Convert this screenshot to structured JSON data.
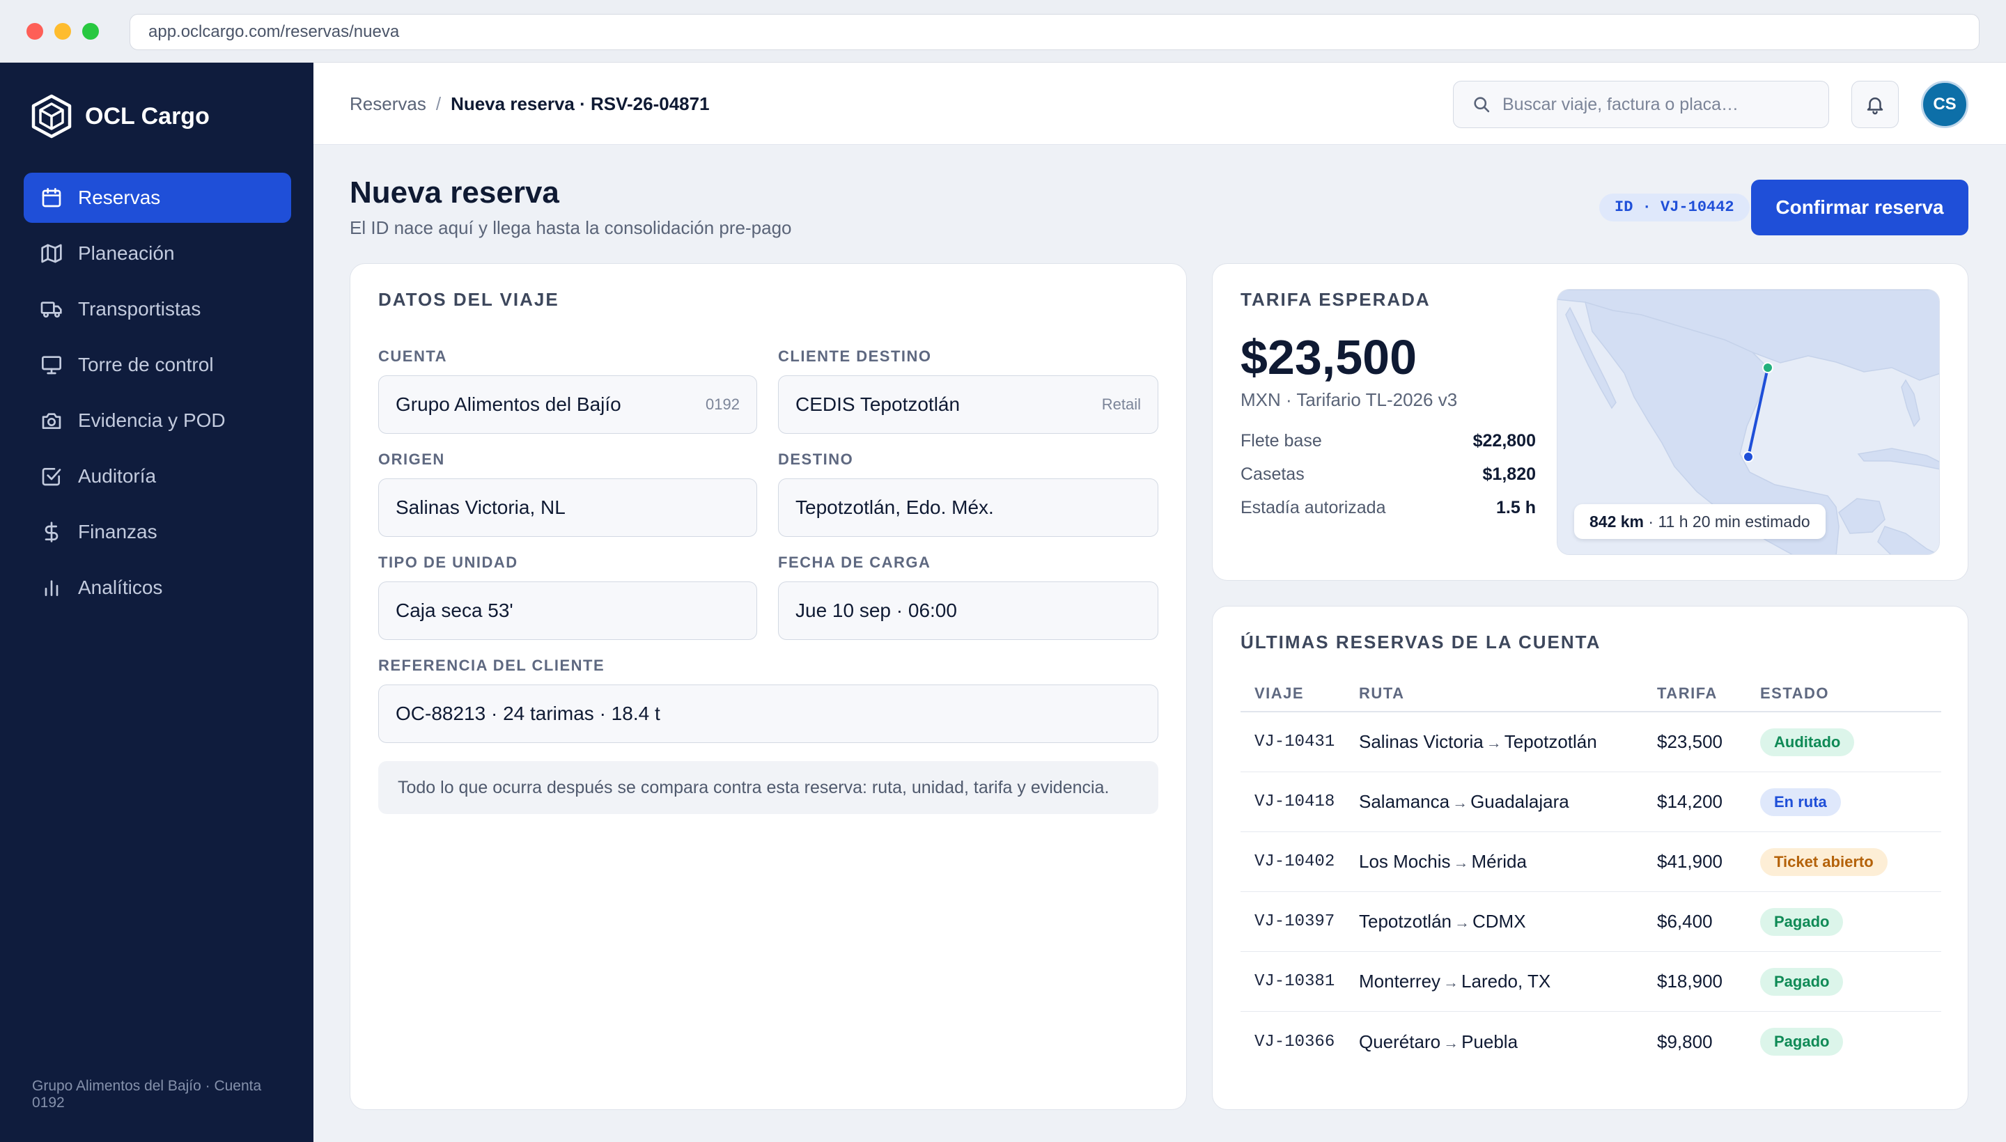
{
  "browser": {
    "url": "app.oclcargo.com/reservas/nueva"
  },
  "brand": {
    "name": "OCL Cargo"
  },
  "sidebar": {
    "items": [
      {
        "label": "Reservas",
        "icon": "calendar-icon",
        "active": true
      },
      {
        "label": "Planeación",
        "icon": "map-icon",
        "active": false
      },
      {
        "label": "Transportistas",
        "icon": "truck-icon",
        "active": false
      },
      {
        "label": "Torre de control",
        "icon": "monitor-icon",
        "active": false
      },
      {
        "label": "Evidencia y POD",
        "icon": "camera-icon",
        "active": false
      },
      {
        "label": "Auditoría",
        "icon": "check-square-icon",
        "active": false
      },
      {
        "label": "Finanzas",
        "icon": "dollar-icon",
        "active": false
      },
      {
        "label": "Analíticos",
        "icon": "bar-chart-icon",
        "active": false
      }
    ],
    "footer": "Grupo Alimentos del Bajío · Cuenta 0192"
  },
  "topbar": {
    "breadcrumb_root": "Reservas",
    "breadcrumb_sep": "/",
    "breadcrumb_current": "Nueva reserva · RSV-26-04871",
    "search_placeholder": "Buscar viaje, factura o placa…",
    "avatar_initials": "CS"
  },
  "header": {
    "title": "Nueva reserva",
    "subtitle": "El ID nace aquí y llega hasta la consolidación pre-pago",
    "id_badge": "ID · VJ-10442",
    "confirm_label": "Confirmar reserva"
  },
  "trip": {
    "title": "DATOS DEL VIAJE",
    "cuenta_label": "CUENTA",
    "cuenta_value": "Grupo Alimentos del Bajío",
    "cuenta_tag": "0192",
    "cliente_label": "CLIENTE DESTINO",
    "cliente_value": "CEDIS Tepotzotlán",
    "cliente_tag": "Retail",
    "origen_label": "ORIGEN",
    "origen_value": "Salinas Victoria, NL",
    "destino_label": "DESTINO",
    "destino_value": "Tepotzotlán, Edo. Méx.",
    "unidad_label": "TIPO DE UNIDAD",
    "unidad_value": "Caja seca 53'",
    "fecha_label": "FECHA DE CARGA",
    "fecha_value": "Jue 10 sep · 06:00",
    "referencia_label": "REFERENCIA DEL CLIENTE",
    "referencia_value": "OC-88213 · 24 tarimas · 18.4 t",
    "note": "Todo lo que ocurra después se compara contra esta reserva: ruta, unidad, tarifa y evidencia."
  },
  "tariff": {
    "title": "TARIFA ESPERADA",
    "amount": "$23,500",
    "sub": "MXN · Tarifario TL-2026 v3",
    "rows": [
      {
        "label": "Flete base",
        "value": "$22,800"
      },
      {
        "label": "Casetas",
        "value": "$1,820"
      },
      {
        "label": "Estadía autorizada",
        "value": "1.5 h"
      }
    ],
    "map_distance": "842 km",
    "map_eta": " · 11 h 20 min estimado",
    "colors": {
      "origin": "#22b07d",
      "destination": "#1f4fd8",
      "route": "#1f4fd8"
    }
  },
  "recent": {
    "title": "ÚLTIMAS RESERVAS DE LA CUENTA",
    "columns": [
      "VIAJE",
      "RUTA",
      "TARIFA",
      "ESTADO"
    ],
    "arrow": "→",
    "rows": [
      {
        "id": "VJ-10431",
        "from": "Salinas Victoria",
        "to": "Tepotzotlán",
        "tarifa": "$23,500",
        "estado": "Auditado",
        "kind": "auditado"
      },
      {
        "id": "VJ-10418",
        "from": "Salamanca",
        "to": "Guadalajara",
        "tarifa": "$14,200",
        "estado": "En ruta",
        "kind": "enruta"
      },
      {
        "id": "VJ-10402",
        "from": "Los Mochis",
        "to": "Mérida",
        "tarifa": "$41,900",
        "estado": "Ticket abierto",
        "kind": "ticket"
      },
      {
        "id": "VJ-10397",
        "from": "Tepotzotlán",
        "to": "CDMX",
        "tarifa": "$6,400",
        "estado": "Pagado",
        "kind": "pagado"
      },
      {
        "id": "VJ-10381",
        "from": "Monterrey",
        "to": "Laredo, TX",
        "tarifa": "$18,900",
        "estado": "Pagado",
        "kind": "pagado"
      },
      {
        "id": "VJ-10366",
        "from": "Querétaro",
        "to": "Puebla",
        "tarifa": "$9,800",
        "estado": "Pagado",
        "kind": "pagado"
      }
    ]
  }
}
